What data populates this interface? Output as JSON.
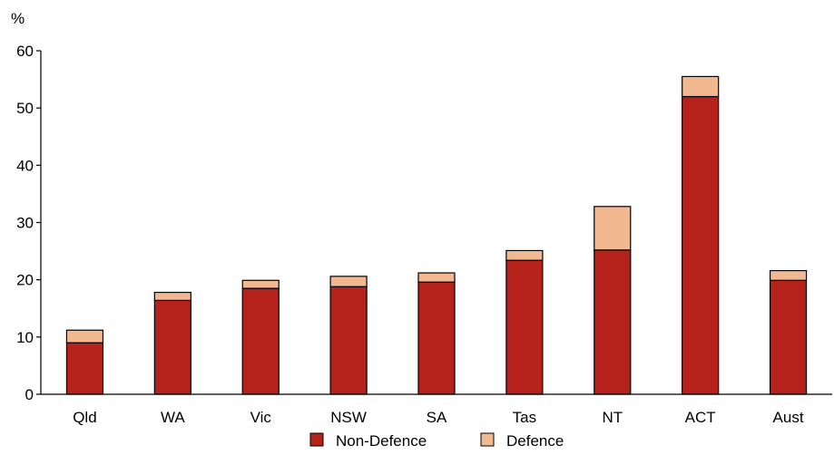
{
  "chart_data": {
    "type": "bar",
    "stacked": true,
    "categories": [
      "Qld",
      "WA",
      "Vic",
      "NSW",
      "SA",
      "Tas",
      "NT",
      "ACT",
      "Aust"
    ],
    "series": [
      {
        "name": "Non-Defence",
        "color": "#b5221b",
        "values": [
          9.0,
          16.4,
          18.5,
          18.8,
          19.6,
          23.4,
          25.2,
          52.0,
          19.9
        ]
      },
      {
        "name": "Defence",
        "color": "#f2b991",
        "values": [
          2.2,
          1.4,
          1.4,
          1.8,
          1.6,
          1.7,
          7.6,
          3.5,
          1.7
        ]
      }
    ],
    "ylabel": "%",
    "ylim": [
      0,
      60
    ],
    "yticks": [
      0,
      10,
      20,
      30,
      40,
      50,
      60
    ],
    "grid": false,
    "legend": "bottom"
  }
}
